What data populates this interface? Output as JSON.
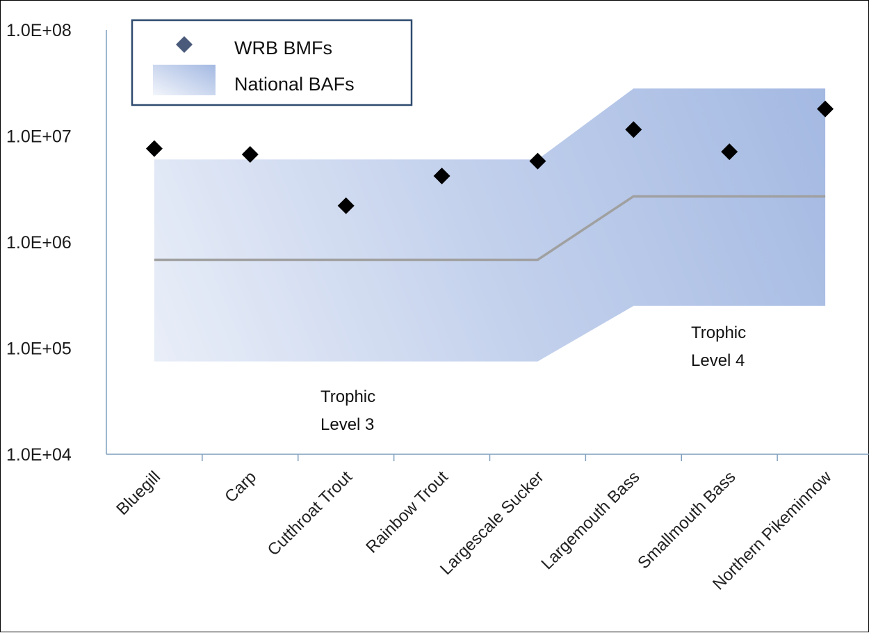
{
  "chart_data": {
    "type": "scatter",
    "title": "",
    "xlabel": "",
    "ylabel": "",
    "y_scale": "log",
    "ylim": [
      10000,
      100000000
    ],
    "y_ticks": [
      "1.0E+04",
      "1.0E+05",
      "1.0E+06",
      "1.0E+07",
      "1.0E+08"
    ],
    "y_tick_values": [
      10000,
      100000,
      1000000,
      10000000,
      100000000
    ],
    "categories": [
      "Bluegill",
      "Carp",
      "Cutthroat Trout",
      "Rainbow Trout",
      "Largescale Sucker",
      "Largemouth Bass",
      "Smallmouth Bass",
      "Northern Pikeminnow"
    ],
    "series": [
      {
        "name": "WRB BMFs",
        "kind": "points",
        "marker": "diamond",
        "color": "#000000",
        "values": [
          7600000,
          6700000,
          2200000,
          4200000,
          5800000,
          11500000,
          7100000,
          18000000
        ]
      },
      {
        "name": "National BAFs",
        "kind": "range-band",
        "color": "#a9bde3",
        "lower": [
          75000,
          75000,
          75000,
          75000,
          75000,
          250000,
          250000,
          250000
        ],
        "upper": [
          6000000,
          6000000,
          6000000,
          6000000,
          6000000,
          28000000,
          28000000,
          28000000
        ],
        "median": [
          680000,
          680000,
          680000,
          680000,
          680000,
          2700000,
          2700000,
          2700000
        ]
      }
    ],
    "annotations": [
      {
        "lines": [
          "Trophic",
          "Level 3"
        ]
      },
      {
        "lines": [
          "Trophic",
          "Level 4"
        ]
      }
    ],
    "legend": {
      "position": "top-left",
      "entries": [
        "WRB BMFs",
        "National BAFs"
      ],
      "marker_color": "#4a5a7a",
      "border_color": "#2e4a6e"
    },
    "grid": false,
    "axis_color": "#7f9fbf",
    "median_line_color": "#a0a0a0"
  }
}
